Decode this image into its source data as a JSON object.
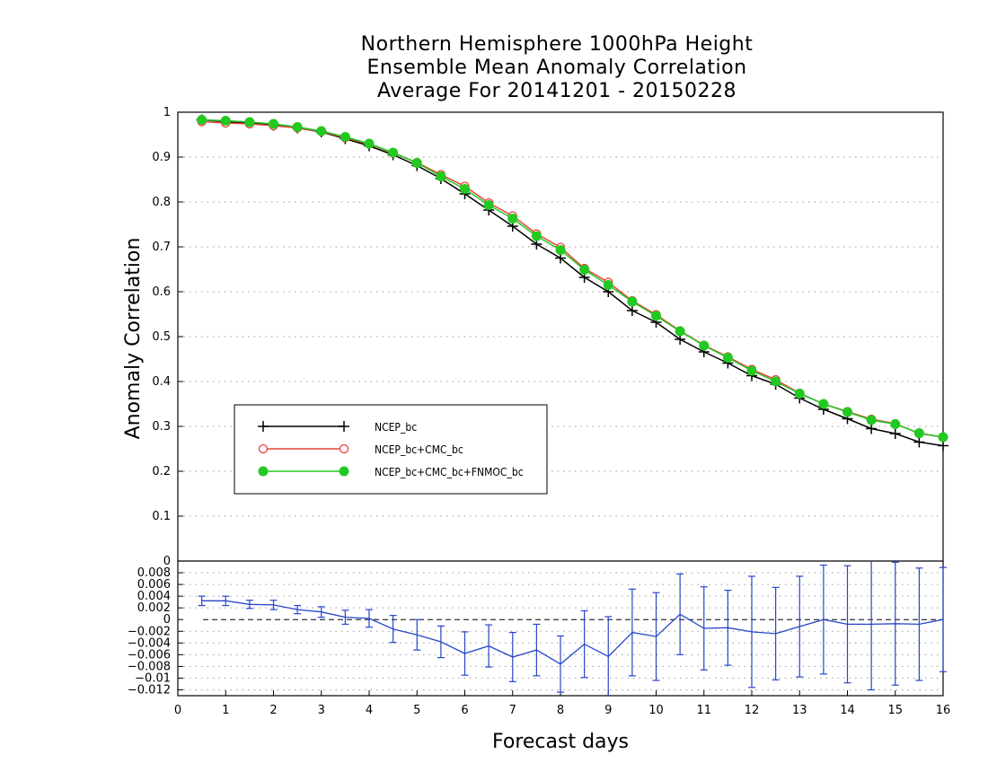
{
  "title": {
    "line1": "Northern Hemisphere 1000hPa Height",
    "line2": "Ensemble Mean Anomaly Correlation",
    "line3": "Average For 20141201 - 20150228"
  },
  "colors": {
    "ncep_bc": "#000000",
    "ncep_bc_cmc_bc": "#e8423a",
    "ncep_bc_cmc_bc_fnmoc_bc": "#22c922",
    "difference": "#2646c8",
    "grid": "#9a9a9a"
  },
  "chart_data": [
    {
      "type": "line",
      "xlabel": "Forecast days",
      "ylabel": "Anomaly Correlation",
      "xlim": [
        0,
        16
      ],
      "ylim": [
        0,
        1
      ],
      "yticks": [
        0,
        0.1,
        0.2,
        0.3,
        0.4,
        0.5,
        0.6,
        0.7,
        0.8,
        0.9,
        1
      ],
      "grid": true,
      "legend_position": "lower-left",
      "x": [
        0.5,
        1,
        1.5,
        2,
        2.5,
        3,
        3.5,
        4,
        4.5,
        5,
        5.5,
        6,
        6.5,
        7,
        7.5,
        8,
        8.5,
        9,
        9.5,
        10,
        10.5,
        11,
        11.5,
        12,
        12.5,
        13,
        13.5,
        14,
        14.5,
        15,
        15.5,
        16
      ],
      "series": [
        {
          "name": "NCEP_bc",
          "marker": "plus",
          "values": [
            0.983,
            0.979,
            0.976,
            0.971,
            0.965,
            0.956,
            0.941,
            0.925,
            0.905,
            0.881,
            0.852,
            0.818,
            0.782,
            0.746,
            0.706,
            0.675,
            0.632,
            0.6,
            0.558,
            0.532,
            0.494,
            0.466,
            0.441,
            0.413,
            0.394,
            0.363,
            0.338,
            0.317,
            0.295,
            0.284,
            0.265,
            0.257
          ]
        },
        {
          "name": "NCEP_bc+CMC_bc",
          "marker": "circle-open",
          "values": [
            0.979,
            0.976,
            0.974,
            0.97,
            0.965,
            0.957,
            0.943,
            0.929,
            0.909,
            0.888,
            0.861,
            0.835,
            0.798,
            0.769,
            0.729,
            0.699,
            0.652,
            0.621,
            0.58,
            0.549,
            0.513,
            0.481,
            0.455,
            0.427,
            0.404,
            0.374,
            0.35,
            0.333,
            0.316,
            0.306,
            0.284,
            0.276
          ]
        },
        {
          "name": "NCEP_bc+CMC_bc+FNMOC_bc",
          "marker": "circle-filled",
          "values": [
            0.983,
            0.981,
            0.978,
            0.974,
            0.967,
            0.958,
            0.945,
            0.93,
            0.91,
            0.887,
            0.857,
            0.829,
            0.793,
            0.763,
            0.724,
            0.693,
            0.649,
            0.615,
            0.578,
            0.546,
            0.512,
            0.48,
            0.453,
            0.424,
            0.4,
            0.373,
            0.35,
            0.332,
            0.314,
            0.305,
            0.285,
            0.276
          ]
        }
      ]
    },
    {
      "type": "line",
      "xlabel": "Forecast days",
      "ylabel": "",
      "xlim": [
        0,
        16
      ],
      "ylim": [
        -0.013,
        0.01
      ],
      "xticks": [
        0,
        1,
        2,
        3,
        4,
        5,
        6,
        7,
        8,
        9,
        10,
        11,
        12,
        13,
        14,
        15,
        16
      ],
      "yticks": [
        0.008,
        0.006,
        0.004,
        0.002,
        0,
        -0.002,
        -0.004,
        -0.006,
        -0.008,
        -0.01,
        -0.012
      ],
      "ytick_labels": [
        "0.008",
        "0.006",
        "0.004",
        "0.002",
        "0",
        "−0.002",
        "−0.004",
        "−0.006",
        "−0.008",
        "−0.01",
        "−0.012"
      ],
      "grid": true,
      "zero_line": true,
      "x": [
        0.5,
        1,
        1.5,
        2,
        2.5,
        3,
        3.5,
        4,
        4.5,
        5,
        5.5,
        6,
        6.5,
        7,
        7.5,
        8,
        8.5,
        9,
        9.5,
        10,
        10.5,
        11,
        11.5,
        12,
        12.5,
        13,
        13.5,
        14,
        14.5,
        15,
        15.5,
        16
      ],
      "series": [
        {
          "values": [
            0.0032,
            0.0032,
            0.0026,
            0.0025,
            0.0017,
            0.0013,
            0.0004,
            0.0002,
            -0.0016,
            -0.0026,
            -0.0038,
            -0.0058,
            -0.0045,
            -0.0064,
            -0.0052,
            -0.0076,
            -0.0042,
            -0.0063,
            -0.0022,
            -0.0029,
            0.0009,
            -0.0015,
            -0.0014,
            -0.0021,
            -0.0024,
            -0.0012,
            0.0,
            -0.0008,
            -0.0008,
            -0.0007,
            -0.0008,
            0.0
          ],
          "error": [
            0.0008,
            0.0008,
            0.0007,
            0.0008,
            0.0007,
            0.0009,
            0.0012,
            0.0015,
            0.0023,
            0.0026,
            0.0027,
            0.0037,
            0.0036,
            0.0042,
            0.0044,
            0.0048,
            0.0057,
            0.0068,
            0.0074,
            0.0075,
            0.0069,
            0.0071,
            0.0064,
            0.0095,
            0.0079,
            0.0086,
            0.0093,
            0.01,
            0.0112,
            0.0105,
            0.0096,
            0.0089
          ]
        }
      ]
    }
  ]
}
